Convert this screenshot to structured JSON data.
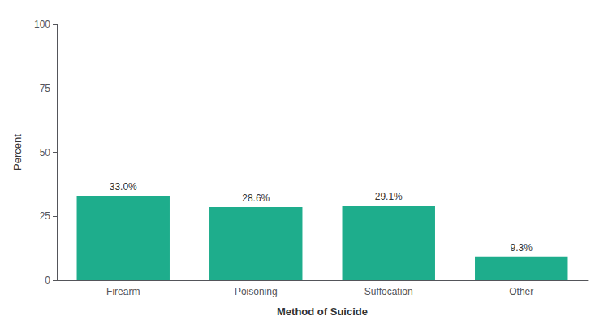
{
  "chart_data": {
    "type": "bar",
    "categories": [
      "Firearm",
      "Poisoning",
      "Suffocation",
      "Other"
    ],
    "values": [
      33.0,
      28.6,
      29.1,
      9.3
    ],
    "value_labels": [
      "33.0%",
      "28.6%",
      "29.1%",
      "9.3%"
    ],
    "data_labels": true,
    "color": "#1EAD8C",
    "xlabel": "Method of Suicide",
    "ylabel": "Percent",
    "ylim": [
      0,
      100
    ],
    "yticks": [
      0,
      25,
      50,
      75,
      100
    ],
    "grid": false
  }
}
